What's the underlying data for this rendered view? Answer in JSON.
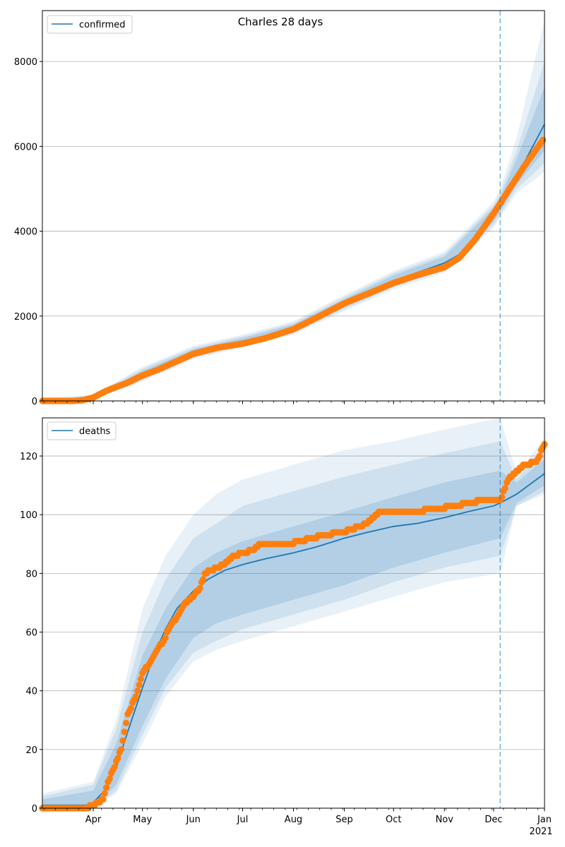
{
  "chart_data": [
    {
      "type": "line",
      "title": "Charles 28 days",
      "legend": {
        "entries": [
          "confirmed"
        ],
        "placement": "top-left"
      },
      "x_range": [
        "2020-03-01",
        "2021-01-01"
      ],
      "ylim": [
        0,
        9200
      ],
      "yticks": [
        0,
        2000,
        4000,
        6000,
        8000
      ],
      "grid": "y",
      "forecast_start": "2020-12-05",
      "model_line": {
        "name": "confirmed",
        "color": "#1f77b4",
        "points": [
          [
            "2020-03-01",
            0
          ],
          [
            "2020-03-25",
            10
          ],
          [
            "2020-04-01",
            80
          ],
          [
            "2020-04-08",
            210
          ],
          [
            "2020-04-15",
            330
          ],
          [
            "2020-04-22",
            460
          ],
          [
            "2020-05-01",
            620
          ],
          [
            "2020-05-10",
            760
          ],
          [
            "2020-05-20",
            920
          ],
          [
            "2020-06-01",
            1130
          ],
          [
            "2020-06-15",
            1300
          ],
          [
            "2020-07-01",
            1410
          ],
          [
            "2020-07-15",
            1530
          ],
          [
            "2020-08-01",
            1720
          ],
          [
            "2020-08-15",
            1950
          ],
          [
            "2020-09-01",
            2300
          ],
          [
            "2020-09-15",
            2560
          ],
          [
            "2020-10-01",
            2830
          ],
          [
            "2020-10-15",
            3020
          ],
          [
            "2020-11-01",
            3250
          ],
          [
            "2020-11-10",
            3450
          ],
          [
            "2020-11-20",
            3800
          ],
          [
            "2020-12-01",
            4370
          ],
          [
            "2020-12-05",
            4620
          ],
          [
            "2020-12-15",
            5280
          ],
          [
            "2021-01-01",
            6520
          ]
        ]
      },
      "observed": {
        "color": "#ff7f0e",
        "points": [
          [
            "2020-03-01",
            0
          ],
          [
            "2020-03-20",
            0
          ],
          [
            "2020-03-26",
            20
          ],
          [
            "2020-04-01",
            80
          ],
          [
            "2020-04-08",
            220
          ],
          [
            "2020-04-15",
            330
          ],
          [
            "2020-04-22",
            430
          ],
          [
            "2020-05-01",
            600
          ],
          [
            "2020-05-10",
            730
          ],
          [
            "2020-05-20",
            900
          ],
          [
            "2020-06-01",
            1110
          ],
          [
            "2020-06-15",
            1250
          ],
          [
            "2020-07-01",
            1350
          ],
          [
            "2020-07-15",
            1480
          ],
          [
            "2020-08-01",
            1690
          ],
          [
            "2020-08-15",
            1960
          ],
          [
            "2020-09-01",
            2300
          ],
          [
            "2020-09-15",
            2520
          ],
          [
            "2020-10-01",
            2780
          ],
          [
            "2020-10-15",
            2960
          ],
          [
            "2020-11-01",
            3150
          ],
          [
            "2020-11-10",
            3370
          ],
          [
            "2020-11-20",
            3820
          ],
          [
            "2020-12-01",
            4420
          ],
          [
            "2020-12-10",
            4960
          ],
          [
            "2020-12-20",
            5550
          ],
          [
            "2020-12-31",
            6150
          ]
        ]
      },
      "band": {
        "color": "#1f77b4",
        "points": [
          [
            "2020-03-01",
            0,
            0,
            0,
            80,
            0,
            40
          ],
          [
            "2020-04-01",
            60,
            100,
            40,
            140,
            50,
            120
          ],
          [
            "2020-05-01",
            540,
            710,
            460,
            800,
            500,
            760
          ],
          [
            "2020-06-01",
            1060,
            1220,
            980,
            1300,
            1020,
            1260
          ],
          [
            "2020-07-01",
            1340,
            1480,
            1270,
            1560,
            1300,
            1520
          ],
          [
            "2020-08-01",
            1640,
            1800,
            1560,
            1880,
            1600,
            1840
          ],
          [
            "2020-09-01",
            2210,
            2400,
            2120,
            2500,
            2160,
            2450
          ],
          [
            "2020-10-01",
            2730,
            2960,
            2630,
            3060,
            2680,
            3010
          ],
          [
            "2020-11-01",
            3130,
            3400,
            3020,
            3520,
            3080,
            3460
          ],
          [
            "2020-12-01",
            4220,
            4550,
            4080,
            4700,
            4150,
            4620
          ],
          [
            "2020-12-05",
            4470,
            4800,
            4320,
            5000,
            4400,
            4900
          ],
          [
            "2020-12-15",
            5100,
            5700,
            4900,
            6200,
            5000,
            5900
          ],
          [
            "2021-01-01",
            5900,
            7400,
            5400,
            9000,
            5600,
            8000
          ]
        ]
      }
    },
    {
      "type": "line",
      "title": "",
      "legend": {
        "entries": [
          "deaths"
        ],
        "placement": "top-left"
      },
      "x_range": [
        "2020-03-01",
        "2021-01-01"
      ],
      "ylim": [
        0,
        133
      ],
      "yticks": [
        0,
        20,
        40,
        60,
        80,
        100,
        120
      ],
      "grid": "y",
      "forecast_start": "2020-12-05",
      "xtick_labels": [
        "Apr",
        "May",
        "Jun",
        "Jul",
        "Aug",
        "Sep",
        "Oct",
        "Nov",
        "Dec",
        "Jan"
      ],
      "xtick_dates": [
        "2020-04-01",
        "2020-05-01",
        "2020-06-01",
        "2020-07-01",
        "2020-08-01",
        "2020-09-01",
        "2020-10-01",
        "2020-11-01",
        "2020-12-01",
        "2021-01-01"
      ],
      "year_label": "2021",
      "model_line": {
        "name": "deaths",
        "color": "#1f77b4",
        "points": [
          [
            "2020-03-01",
            1
          ],
          [
            "2020-03-28",
            1
          ],
          [
            "2020-04-01",
            2
          ],
          [
            "2020-04-08",
            6
          ],
          [
            "2020-04-15",
            14
          ],
          [
            "2020-04-22",
            26
          ],
          [
            "2020-05-01",
            41
          ],
          [
            "2020-05-08",
            52
          ],
          [
            "2020-05-15",
            61
          ],
          [
            "2020-05-22",
            68
          ],
          [
            "2020-06-01",
            74
          ],
          [
            "2020-06-10",
            78
          ],
          [
            "2020-06-20",
            81
          ],
          [
            "2020-07-01",
            83
          ],
          [
            "2020-07-15",
            85
          ],
          [
            "2020-08-01",
            87
          ],
          [
            "2020-08-15",
            89
          ],
          [
            "2020-09-01",
            92
          ],
          [
            "2020-09-15",
            94
          ],
          [
            "2020-10-01",
            96
          ],
          [
            "2020-10-15",
            97
          ],
          [
            "2020-11-01",
            99
          ],
          [
            "2020-11-15",
            101
          ],
          [
            "2020-12-01",
            103
          ],
          [
            "2020-12-05",
            104
          ],
          [
            "2020-12-15",
            107
          ],
          [
            "2021-01-01",
            114
          ]
        ]
      },
      "observed": {
        "color": "#ff7f0e",
        "points": [
          [
            "2020-03-01",
            0
          ],
          [
            "2020-03-28",
            0
          ],
          [
            "2020-04-01",
            1
          ],
          [
            "2020-04-07",
            3
          ],
          [
            "2020-04-10",
            9
          ],
          [
            "2020-04-14",
            14
          ],
          [
            "2020-04-18",
            20
          ],
          [
            "2020-04-22",
            32
          ],
          [
            "2020-04-27",
            38
          ],
          [
            "2020-05-01",
            46
          ],
          [
            "2020-05-06",
            50
          ],
          [
            "2020-05-10",
            54
          ],
          [
            "2020-05-14",
            57
          ],
          [
            "2020-05-18",
            62
          ],
          [
            "2020-05-22",
            65
          ],
          [
            "2020-05-26",
            69
          ],
          [
            "2020-06-01",
            72
          ],
          [
            "2020-06-05",
            75
          ],
          [
            "2020-06-08",
            80
          ],
          [
            "2020-06-15",
            82
          ],
          [
            "2020-06-20",
            83
          ],
          [
            "2020-06-25",
            86
          ],
          [
            "2020-07-08",
            88
          ],
          [
            "2020-07-12",
            90
          ],
          [
            "2020-08-01",
            90
          ],
          [
            "2020-08-03",
            91
          ],
          [
            "2020-08-14",
            92
          ],
          [
            "2020-08-18",
            93
          ],
          [
            "2020-09-01",
            94
          ],
          [
            "2020-09-05",
            95
          ],
          [
            "2020-09-15",
            97
          ],
          [
            "2020-09-22",
            101
          ],
          [
            "2020-10-15",
            101
          ],
          [
            "2020-10-25",
            102
          ],
          [
            "2020-11-10",
            103
          ],
          [
            "2020-11-14",
            104
          ],
          [
            "2020-11-28",
            105
          ],
          [
            "2020-12-05",
            105
          ],
          [
            "2020-12-08",
            109
          ],
          [
            "2020-12-10",
            112
          ],
          [
            "2020-12-16",
            115
          ],
          [
            "2020-12-20",
            117
          ],
          [
            "2020-12-27",
            118
          ],
          [
            "2020-12-29",
            120
          ],
          [
            "2020-12-30",
            122
          ],
          [
            "2021-01-01",
            124
          ]
        ]
      },
      "band": {
        "color": "#1f77b4",
        "points": [
          [
            "2020-03-01",
            0,
            3,
            0,
            5,
            0,
            4
          ],
          [
            "2020-04-01",
            0,
            6,
            0,
            9,
            0,
            8
          ],
          [
            "2020-04-15",
            8,
            22,
            5,
            30,
            6,
            27
          ],
          [
            "2020-05-01",
            28,
            52,
            22,
            68,
            25,
            60
          ],
          [
            "2020-05-15",
            44,
            68,
            38,
            86,
            41,
            78
          ],
          [
            "2020-06-01",
            58,
            82,
            50,
            100,
            53,
            92
          ],
          [
            "2020-06-15",
            63,
            87,
            54,
            107,
            57,
            97
          ],
          [
            "2020-07-01",
            66,
            91,
            57,
            112,
            61,
            103
          ],
          [
            "2020-08-01",
            71,
            96,
            62,
            117,
            66,
            108
          ],
          [
            "2020-09-01",
            76,
            101,
            67,
            122,
            71,
            113
          ],
          [
            "2020-10-01",
            82,
            106,
            72,
            125,
            77,
            117
          ],
          [
            "2020-11-01",
            87,
            111,
            77,
            129,
            82,
            121
          ],
          [
            "2020-12-05",
            92,
            115,
            80,
            133,
            86,
            125
          ],
          [
            "2020-12-15",
            104,
            111,
            103,
            114,
            103,
            112
          ],
          [
            "2021-01-01",
            110,
            119,
            107,
            126,
            108,
            123
          ]
        ]
      }
    }
  ]
}
